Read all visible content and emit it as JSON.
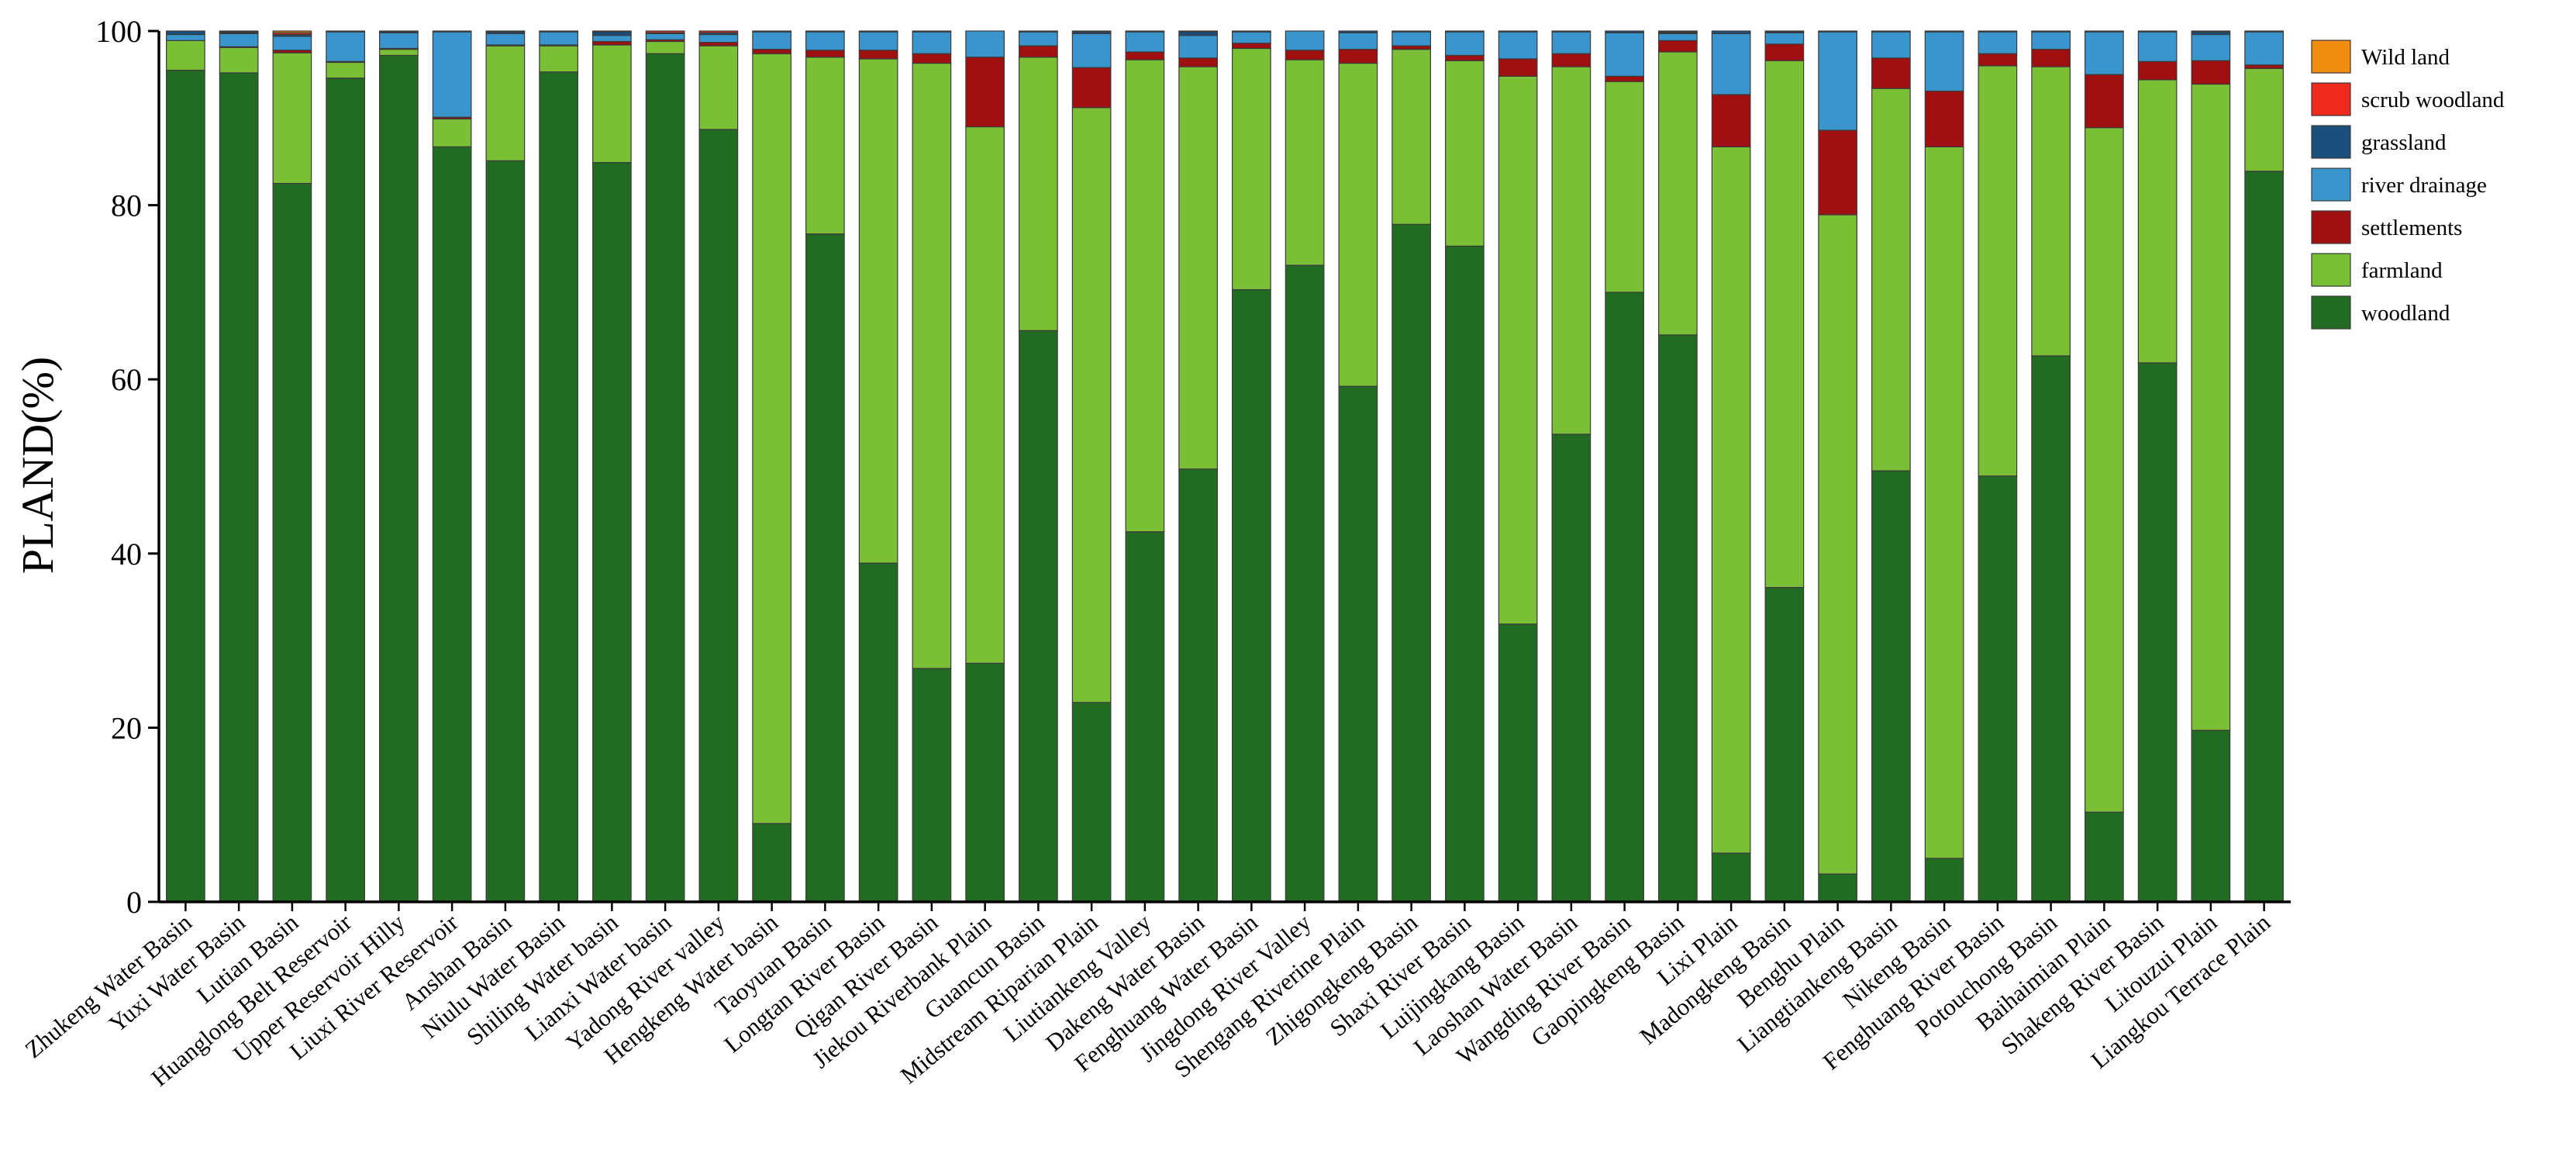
{
  "chart_data": {
    "type": "bar",
    "stacked": true,
    "title": "",
    "xlabel": "",
    "ylabel": "PLAND(%)",
    "ylim": [
      0,
      100
    ],
    "yticks": [
      0,
      20,
      40,
      60,
      80,
      100
    ],
    "grid": false,
    "legend_position": "top-right",
    "categories": [
      "Zhukeng Water Basin",
      "Yuxi Water Basin",
      "Lutian Basin",
      "Huanglong Belt Reservoir",
      "Upper Reservoir Hilly",
      "Liuxi River Reservoir",
      "Anshan Basin",
      "Niulu Water Basin",
      "Shiling Water basin",
      "Lianxi Water basin",
      "Yadong River valley",
      "Hengkeng Water basin",
      "Taoyuan Basin",
      "Longtan River Basin",
      "Qigan River Basin",
      "Jiekou Riverbank Plain",
      "Guancun Basin",
      "Midstream Riparian Plain",
      "Liutiankeng Valley",
      "Dakeng Water Basin",
      "Fenghuang Water Basin",
      "Jingdong River Valley",
      "Shengang Riverine Plain",
      "Zhigongkeng Basin",
      "Shaxi River Basin",
      "Luijingkang Basin",
      "Laoshan Water Basin",
      "Wangding River Basin",
      "Gaopingkeng Basin",
      "Lixi Plain",
      "Madongkeng Basin",
      "Benghu Plain",
      "Liangtiankeng Basin",
      "Nikeng Basin",
      "Fenghuang River Basin",
      "Potouchong Basin",
      "Baihaimian Plain",
      "Shakeng River Basin",
      "Litouzui Plain",
      "Liangkou Terrace Plain"
    ],
    "series": [
      {
        "name": "woodland",
        "color": "#226b22",
        "values": [
          95.5,
          95.2,
          82.5,
          94.6,
          97.2,
          86.7,
          85.1,
          95.3,
          84.9,
          97.4,
          88.7,
          9.0,
          76.7,
          38.9,
          26.8,
          27.4,
          65.6,
          22.9,
          42.5,
          49.7,
          70.3,
          73.1,
          59.2,
          77.8,
          75.3,
          31.9,
          53.7,
          70.0,
          65.1,
          5.6,
          36.1,
          3.2,
          49.5,
          5.0,
          48.9,
          62.7,
          10.3,
          61.9,
          19.7,
          83.9
        ]
      },
      {
        "name": "farmland",
        "color": "#7abf36",
        "values": [
          3.4,
          2.9,
          15.0,
          1.8,
          0.7,
          3.2,
          13.2,
          3.0,
          13.5,
          1.4,
          9.6,
          88.4,
          20.3,
          57.9,
          69.5,
          61.6,
          31.4,
          68.3,
          54.2,
          46.2,
          27.7,
          23.6,
          37.1,
          20.1,
          21.3,
          62.9,
          42.2,
          24.2,
          32.5,
          81.1,
          60.5,
          75.7,
          43.9,
          81.7,
          47.1,
          33.2,
          78.6,
          32.5,
          74.2,
          11.8
        ]
      },
      {
        "name": "settlements",
        "color": "#a01010",
        "values": [
          0.0,
          0.1,
          0.3,
          0.1,
          0.1,
          0.2,
          0.1,
          0.1,
          0.4,
          0.2,
          0.4,
          0.5,
          0.8,
          1.0,
          1.1,
          8.0,
          1.3,
          4.6,
          0.9,
          1.0,
          0.6,
          1.1,
          1.6,
          0.4,
          0.6,
          2.0,
          1.5,
          0.6,
          1.3,
          6.0,
          1.9,
          9.7,
          3.5,
          6.4,
          1.4,
          2.0,
          6.1,
          2.1,
          2.7,
          0.4
        ]
      },
      {
        "name": "river drainage",
        "color": "#3a95cc",
        "values": [
          0.7,
          1.5,
          1.6,
          3.4,
          1.8,
          9.8,
          1.3,
          1.5,
          0.7,
          0.7,
          0.9,
          2.0,
          2.1,
          2.1,
          2.5,
          3.0,
          1.6,
          3.9,
          2.3,
          2.6,
          1.3,
          2.2,
          1.9,
          1.6,
          2.7,
          3.1,
          2.5,
          5.0,
          0.8,
          7.0,
          1.3,
          11.3,
          3.0,
          6.8,
          2.5,
          2.0,
          4.9,
          3.4,
          3.0,
          3.8
        ]
      },
      {
        "name": "grassland",
        "color": "#1b4e7a",
        "values": [
          0.4,
          0.1,
          0.2,
          0.1,
          0.1,
          0.1,
          0.2,
          0.1,
          0.4,
          0.1,
          0.2,
          0.1,
          0.1,
          0.0,
          0.1,
          0.0,
          0.1,
          0.2,
          0.1,
          0.4,
          0.1,
          0.0,
          0.2,
          0.1,
          0.1,
          0.1,
          0.1,
          0.2,
          0.1,
          0.3,
          0.1,
          0.1,
          0.1,
          0.1,
          0.1,
          0.1,
          0.1,
          0.1,
          0.3,
          0.1
        ]
      },
      {
        "name": "scrub woodland",
        "color": "#ee2a1f",
        "values": [
          0.0,
          0.1,
          0.2,
          0.0,
          0.1,
          0.0,
          0.1,
          0.0,
          0.1,
          0.2,
          0.2,
          0.0,
          0.0,
          0.1,
          0.0,
          0.0,
          0.0,
          0.1,
          0.0,
          0.1,
          0.0,
          0.0,
          0.0,
          0.0,
          0.0,
          0.0,
          0.0,
          0.0,
          0.1,
          0.0,
          0.1,
          0.0,
          0.0,
          0.0,
          0.0,
          0.0,
          0.0,
          0.0,
          0.1,
          0.0
        ]
      },
      {
        "name": "Wild land",
        "color": "#f08c10",
        "values": [
          0.0,
          0.1,
          0.2,
          0.0,
          0.0,
          0.0,
          0.0,
          0.0,
          0.0,
          0.0,
          0.0,
          0.0,
          0.0,
          0.0,
          0.0,
          0.0,
          0.0,
          0.0,
          0.0,
          0.0,
          0.0,
          0.0,
          0.0,
          0.0,
          0.0,
          0.0,
          0.0,
          0.0,
          0.1,
          0.0,
          0.0,
          0.0,
          0.0,
          0.0,
          0.0,
          0.0,
          0.0,
          0.0,
          0.0,
          0.0
        ]
      }
    ],
    "legend_order": [
      "Wild land",
      "scrub woodland",
      "grassland",
      "river drainage",
      "settlements",
      "farmland",
      "woodland"
    ]
  }
}
